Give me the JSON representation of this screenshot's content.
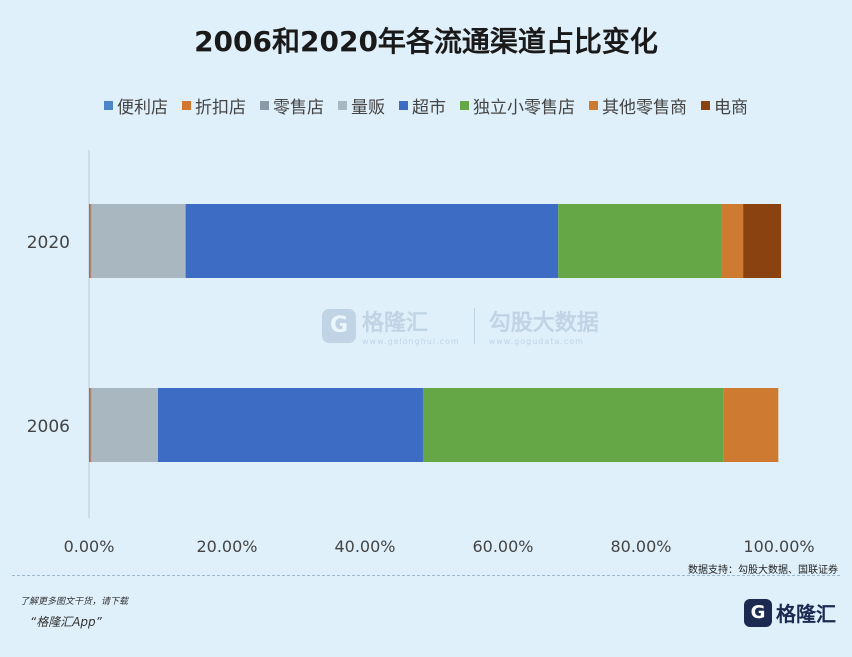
{
  "chart_data": {
    "type": "bar",
    "orientation": "horizontal",
    "stacked": true,
    "title": "2006和2020年各流通渠道占比变化",
    "categories": [
      "2020",
      "2006"
    ],
    "series": [
      {
        "name": "便利店",
        "color": "#4a86c8",
        "values": [
          0.2,
          0.2
        ]
      },
      {
        "name": "折扣店",
        "color": "#d4772e",
        "values": [
          0.1,
          0.1
        ]
      },
      {
        "name": "零售店",
        "color": "#8b9aa6",
        "values": [
          0.1,
          0.1
        ]
      },
      {
        "name": "量贩",
        "color": "#a9b7c0",
        "values": [
          13.6,
          9.6
        ]
      },
      {
        "name": "超市",
        "color": "#3d6cc4",
        "values": [
          54.0,
          38.4
        ]
      },
      {
        "name": "独立小零售店",
        "color": "#65a747",
        "values": [
          23.6,
          43.6
        ]
      },
      {
        "name": "其他零售商",
        "color": "#cf7a31",
        "values": [
          3.2,
          7.9
        ]
      },
      {
        "name": "电商",
        "color": "#8a4310",
        "values": [
          5.5,
          0
        ]
      }
    ],
    "xlim": [
      0,
      100
    ],
    "xticks": [
      "0.00%",
      "20.00%",
      "40.00%",
      "60.00%",
      "80.00%",
      "100.00%"
    ],
    "legend_position": "top",
    "grid": false
  },
  "source": "数据支持：勾股大数据、国联证券",
  "watermark": {
    "mark": "G",
    "brand": "格隆汇",
    "sub_brand": "www.gelonghui.com",
    "data_brand": "勾股大数据",
    "data_url": "www.gogudata.com"
  },
  "footer": {
    "note": "了解更多图文干货，请下载",
    "app": "“格隆汇App”",
    "brand_mark": "G",
    "brand": "格隆汇"
  }
}
